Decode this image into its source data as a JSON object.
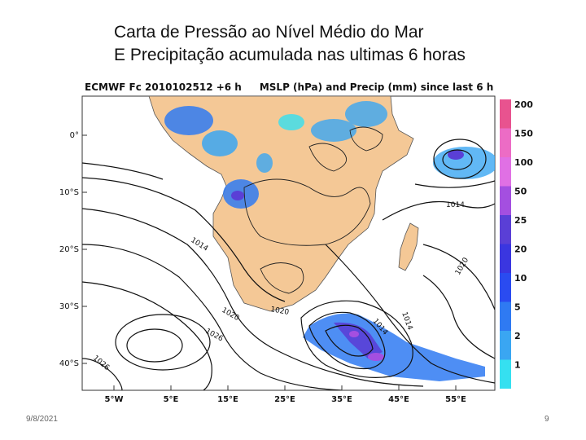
{
  "slide": {
    "title_line1": "Carta de Pressão ao Nível Médio do Mar",
    "title_line2": "E Precipitação acumulada nas ultimas 6 horas",
    "footer_date": "9/8/2021",
    "page_number": "9"
  },
  "map": {
    "header_left": "ECMWF Fc 2010102512 +6 h",
    "header_right": "MSLP (hPa) and Precip (mm) since last 6 h",
    "lat_labels": [
      "0°",
      "10°S",
      "20°S",
      "30°S",
      "40°S"
    ],
    "lon_labels": [
      "5°W",
      "5°E",
      "15°E",
      "25°E",
      "35°E",
      "45°E",
      "55°E"
    ],
    "isobar_labels": [
      "1014",
      "1014",
      "1020",
      "1020",
      "1026",
      "1026",
      "1014",
      "1020",
      "1014"
    ],
    "colors": {
      "land": "#f4c896",
      "ocean": "#ffffff",
      "isobar": "#111111"
    },
    "legend": {
      "ticks": [
        "200",
        "150",
        "100",
        "50",
        "25",
        "20",
        "10",
        "5",
        "2",
        "1"
      ],
      "colors": [
        "#e8538f",
        "#ec6cc5",
        "#e070e4",
        "#a44fe0",
        "#5a3fd6",
        "#3a36e0",
        "#2a4bf0",
        "#2f7af2",
        "#3aa6f2",
        "#35e0f0"
      ]
    }
  }
}
